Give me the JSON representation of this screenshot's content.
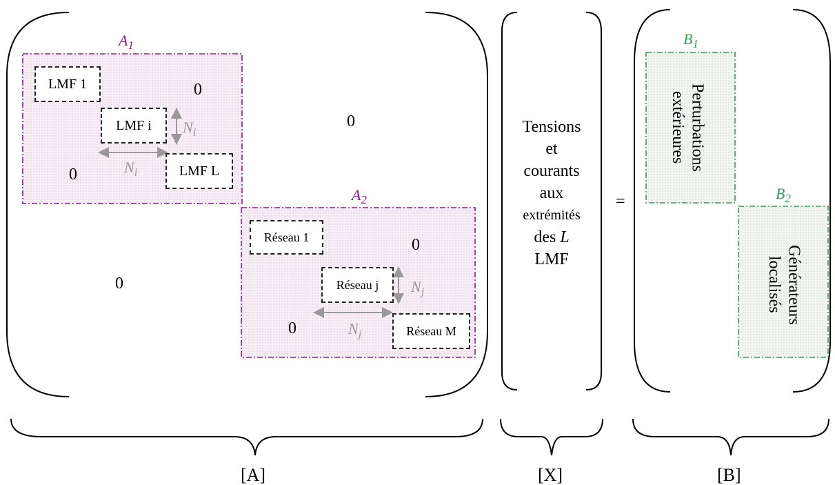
{
  "matrix_A": {
    "block_A1": {
      "label": "A",
      "subscript": "1",
      "diag": [
        "LMF 1",
        "LMF i",
        "LMF L"
      ],
      "upper_zero": "0",
      "lower_zero": "0",
      "dim_label": "N",
      "dim_subscript": "i"
    },
    "block_A2": {
      "label": "A",
      "subscript": "2",
      "diag": [
        "Réseau 1",
        "Réseau j",
        "Réseau M"
      ],
      "upper_zero": "0",
      "lower_zero": "0",
      "dim_label": "N",
      "dim_subscript": "j"
    },
    "offdiag_upper": "0",
    "offdiag_lower": "0",
    "bracket_label": "[A]"
  },
  "vector_X": {
    "lines": [
      "Tensions",
      "et",
      "courants",
      "aux",
      "extrémités",
      "des",
      "L",
      "LMF"
    ],
    "bracket_label": "[X]"
  },
  "equals": "=",
  "vector_B": {
    "block_B1": {
      "label": "B",
      "subscript": "1",
      "text": [
        "Perturbations",
        "extérieures"
      ]
    },
    "block_B2": {
      "label": "B",
      "subscript": "2",
      "text": [
        "Générateurs",
        "localisés"
      ]
    },
    "bracket_label": "[B]"
  },
  "colors": {
    "A_blocks": "#8b1a8b",
    "B_blocks": "#3a9a5a",
    "dimension_arrows": "#999999",
    "boxes": "#222222"
  }
}
